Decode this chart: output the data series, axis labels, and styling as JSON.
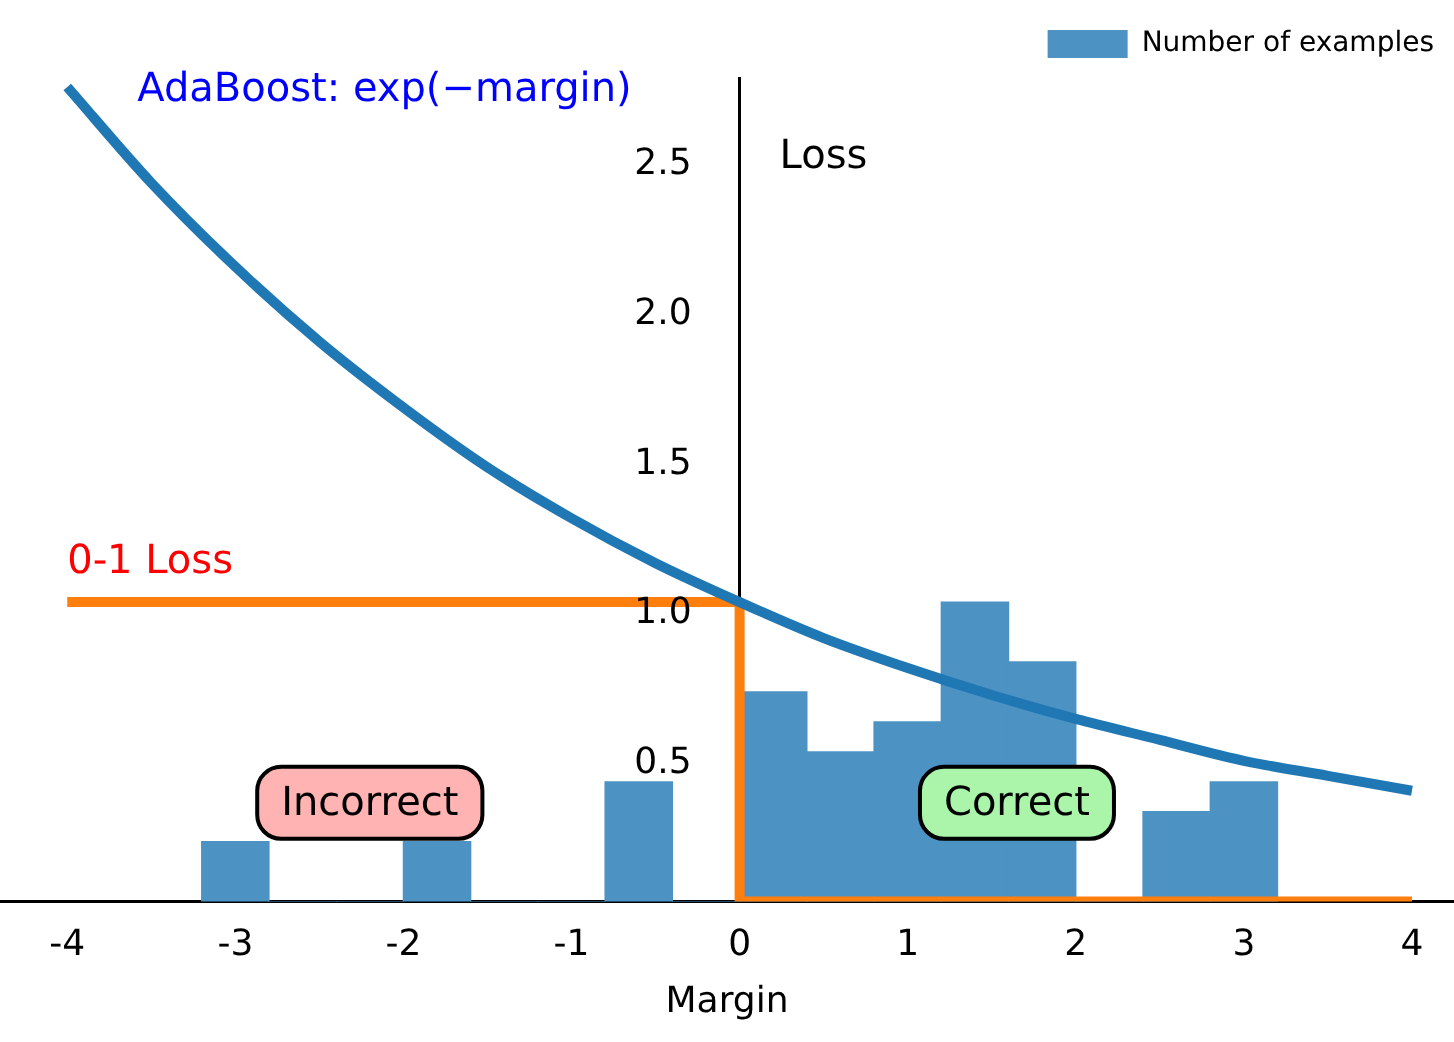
{
  "chart_data": {
    "type": "histogram",
    "xlabel": "Margin",
    "ylabel": "Loss",
    "xlim": [
      -4.4,
      4.25
    ],
    "ylim": [
      0,
      2.75
    ],
    "xticks": [
      -4,
      -3,
      -2,
      -1,
      0,
      1,
      2,
      3,
      4
    ],
    "yticks": [
      {
        "value": 0.5,
        "label": "0.5"
      },
      {
        "value": 1,
        "label": "1.0"
      },
      {
        "value": 1.5,
        "label": "1.5"
      },
      {
        "value": 2,
        "label": "2.0"
      },
      {
        "value": 2.5,
        "label": "2.5"
      }
    ],
    "grid": false,
    "legend": "top right",
    "annotations": [
      "Incorrect",
      "Correct"
    ],
    "series": [
      {
        "type": "histogram",
        "name": "Number of examples",
        "color": "#4c92c3",
        "bins": [
          -3.2,
          -2.8,
          -2.4,
          -2.0,
          -1.6,
          -1.2,
          -0.8,
          -0.4,
          0,
          0.4,
          0.8,
          1.2,
          1.6,
          2.0,
          2.4,
          2.8,
          3.2
        ],
        "values": [
          0.2,
          0,
          0,
          0.2,
          0,
          0,
          0.4,
          0,
          0.7,
          0.5,
          0.6,
          1.0,
          0.8,
          0,
          0.3,
          0.4
        ]
      },
      {
        "type": "line",
        "name": "AdaBoost: exp(−margin)",
        "color": "#1f77b4",
        "x": [
          -4,
          -3.5,
          -3,
          -2.5,
          -2,
          -1.5,
          -1,
          -0.5,
          0,
          0.5,
          1,
          1.5,
          2,
          2.5,
          3,
          3.5,
          4
        ],
        "values": [
          2.72,
          2.4,
          2.12,
          1.87,
          1.65,
          1.45,
          1.28,
          1.13,
          1,
          0.88,
          0.78,
          0.69,
          0.61,
          0.54,
          0.47,
          0.42,
          0.37
        ]
      },
      {
        "type": "step",
        "name": "0-1 Loss",
        "color": "#ff7f0e",
        "x": [
          -4,
          0,
          4
        ],
        "values": [
          1,
          0,
          0
        ]
      }
    ]
  }
}
